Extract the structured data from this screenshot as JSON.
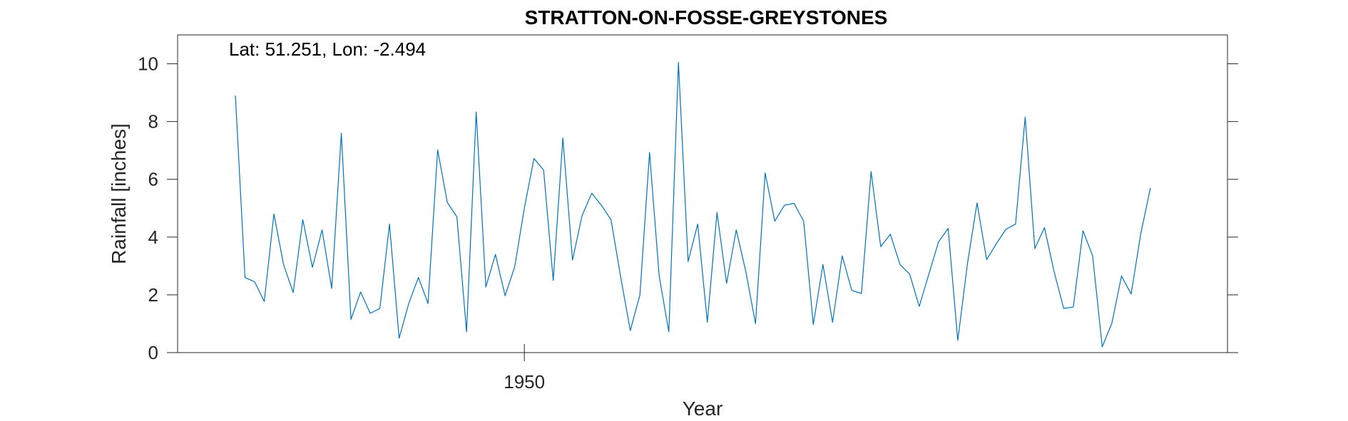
{
  "chart_data": {
    "type": "line",
    "title": "STRATTON-ON-FOSSE-GREYSTONES",
    "xlabel": "Year",
    "ylabel": "Rainfall [inches]",
    "annotation": "Lat: 51.251, Lon: -2.494",
    "xlim": [
      1914,
      2023
    ],
    "ylim": [
      0,
      11
    ],
    "x_ticks": [
      1950
    ],
    "x_tick_labels": [
      "1950"
    ],
    "y_ticks": [
      0,
      2,
      4,
      6,
      8,
      10
    ],
    "y_tick_labels": [
      "0",
      "2",
      "4",
      "6",
      "8",
      "10"
    ],
    "line_color": "#0072BD",
    "grid": false,
    "series": [
      {
        "x": [
          1920,
          1921,
          1922,
          1923,
          1924,
          1925,
          1926,
          1927,
          1928,
          1929,
          1930,
          1931,
          1932,
          1933,
          1934,
          1935,
          1936,
          1937,
          1938,
          1939,
          1940,
          1941,
          1942,
          1943,
          1944,
          1945,
          1946,
          1947,
          1948,
          1949,
          1950,
          1951,
          1952,
          1953,
          1954,
          1955,
          1956,
          1957,
          1958,
          1959,
          1960,
          1961,
          1962,
          1963,
          1964,
          1965,
          1966,
          1967,
          1968,
          1969,
          1970,
          1971,
          1972,
          1973,
          1974,
          1975,
          1976,
          1977,
          1978,
          1979,
          1980,
          1981,
          1982,
          1983,
          1984,
          1985,
          1986,
          1987,
          1988,
          1989,
          1990,
          1991,
          1992,
          1993,
          1994,
          1995,
          1996,
          1997,
          1998,
          1999,
          2000,
          2001,
          2002,
          2003,
          2004,
          2005,
          2006,
          2007,
          2008,
          2009,
          2010,
          2011,
          2012,
          2013,
          2014,
          2015
        ],
        "y": [
          8.9,
          2.6,
          2.45,
          1.77,
          4.8,
          3.05,
          2.08,
          4.6,
          2.95,
          4.25,
          2.22,
          7.6,
          1.15,
          2.1,
          1.36,
          1.53,
          4.45,
          0.5,
          1.7,
          2.6,
          1.7,
          7.02,
          5.2,
          4.7,
          0.72,
          8.33,
          2.27,
          3.4,
          1.97,
          2.97,
          5.0,
          6.72,
          6.32,
          2.5,
          7.43,
          3.2,
          4.75,
          5.52,
          5.1,
          4.6,
          2.62,
          0.76,
          2.0,
          6.93,
          2.65,
          0.72,
          10.05,
          3.15,
          4.45,
          1.05,
          4.85,
          2.4,
          4.25,
          2.8,
          1.0,
          6.22,
          4.55,
          5.1,
          5.17,
          4.55,
          0.97,
          3.05,
          1.05,
          3.35,
          2.15,
          2.05,
          6.27,
          3.67,
          4.1,
          3.05,
          2.72,
          1.6,
          2.72,
          3.83,
          4.3,
          0.42,
          3.07,
          5.18,
          3.22,
          3.77,
          4.27,
          4.45,
          8.15,
          3.6,
          4.33,
          2.8,
          1.53,
          1.58,
          4.22,
          3.35,
          0.2,
          1.02,
          2.65,
          2.03,
          4.12,
          5.7
        ]
      }
    ]
  }
}
